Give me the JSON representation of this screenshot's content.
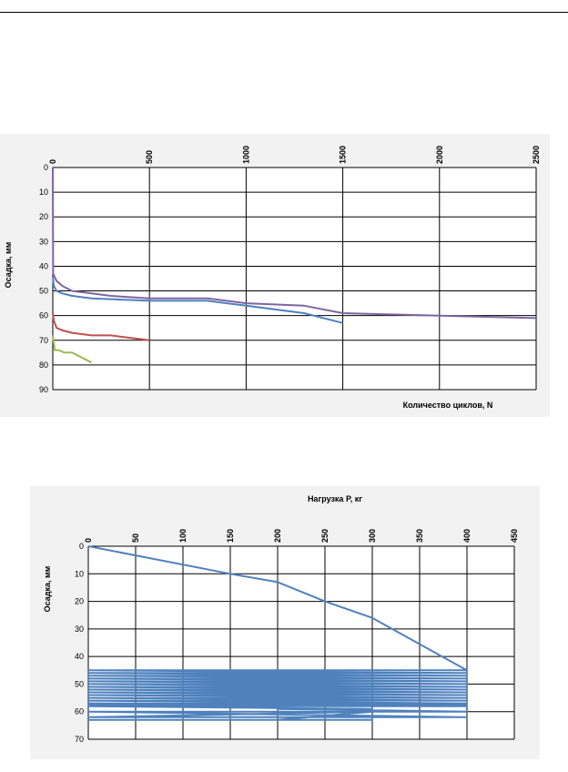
{
  "chart_data": [
    {
      "type": "line",
      "title": "",
      "xlabel": "Количество циклов, N",
      "ylabel": "Осадка, мм",
      "xlim": [
        0,
        2500
      ],
      "ylim": [
        0,
        90
      ],
      "x_axis_position": "top",
      "y_inverted": true,
      "grid": true,
      "x_ticks": [
        0,
        500,
        1000,
        1500,
        2000,
        2500
      ],
      "y_ticks": [
        0,
        10,
        20,
        30,
        40,
        50,
        60,
        70,
        80,
        90
      ],
      "colors": [
        "#8064a2",
        "#4f81bd",
        "#c0504d",
        "#9bbb59"
      ],
      "series": [
        {
          "color": "#8064a2",
          "x": [
            0,
            2,
            20,
            50,
            100,
            200,
            300,
            500,
            800,
            1000,
            1300,
            1500,
            2000,
            2500
          ],
          "y": [
            0,
            43,
            46,
            48,
            50,
            51,
            52,
            53,
            53,
            55,
            56,
            59,
            60,
            61
          ]
        },
        {
          "color": "#4f81bd",
          "x": [
            0,
            5,
            20,
            50,
            100,
            200,
            500,
            800,
            1000,
            1300,
            1500
          ],
          "y": [
            44,
            48,
            50,
            51,
            52,
            53,
            54,
            54,
            56,
            59,
            63
          ]
        },
        {
          "color": "#c0504d",
          "x": [
            0,
            5,
            20,
            50,
            100,
            200,
            300,
            500
          ],
          "y": [
            59,
            62,
            65,
            66,
            67,
            68,
            68,
            70
          ]
        },
        {
          "color": "#9bbb59",
          "x": [
            0,
            5,
            10,
            30,
            60,
            100,
            200
          ],
          "y": [
            68,
            71,
            74,
            74,
            75,
            75,
            79
          ]
        }
      ]
    },
    {
      "type": "line",
      "title": "",
      "xlabel": "Нагрузка P, кг",
      "ylabel": "Осадка, мм",
      "xlim": [
        0,
        450
      ],
      "ylim": [
        0,
        70
      ],
      "x_axis_position": "top",
      "y_inverted": true,
      "grid": true,
      "x_ticks": [
        0,
        50,
        100,
        150,
        200,
        250,
        300,
        350,
        400,
        450
      ],
      "y_ticks": [
        0,
        10,
        20,
        30,
        40,
        50,
        60,
        70
      ],
      "colors": [
        "#4f81bd"
      ],
      "series": [
        {
          "color": "#4f81bd",
          "x": [
            0,
            150,
            200,
            250,
            300,
            400,
            0,
            400,
            0,
            400,
            0,
            400,
            0,
            400,
            0,
            400,
            0,
            400,
            0,
            400,
            0,
            400,
            0,
            400,
            0,
            400,
            0,
            400,
            0,
            400,
            0,
            400,
            0,
            400,
            0,
            300,
            200,
            400,
            0,
            400,
            0,
            300,
            200,
            300,
            0
          ],
          "y": [
            0,
            10,
            13,
            20,
            26,
            45,
            45,
            46,
            46,
            47,
            47,
            48,
            48,
            49,
            49,
            50,
            50,
            51,
            51,
            52,
            52,
            53,
            53,
            54,
            54,
            55,
            55,
            56,
            56,
            57,
            57,
            57.5,
            57.5,
            58,
            58,
            59,
            59,
            60,
            60,
            62,
            62,
            60,
            63,
            63,
            63
          ]
        }
      ]
    }
  ]
}
